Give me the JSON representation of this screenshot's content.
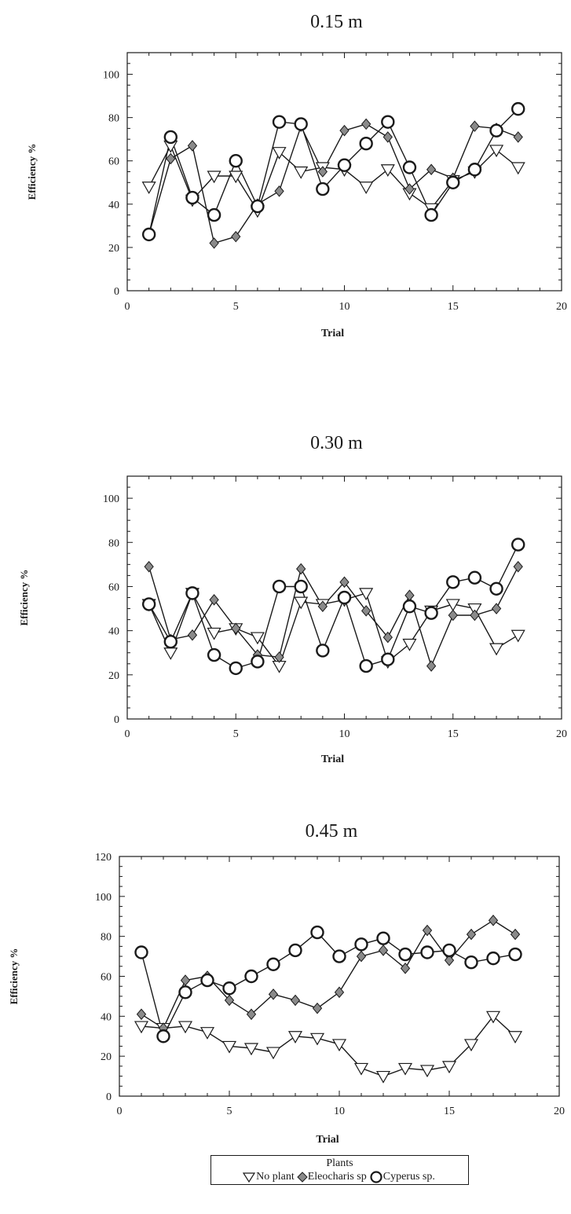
{
  "chart_data": [
    {
      "type": "line",
      "title": "0.15 m",
      "xlabel": "Trial",
      "ylabel": "Efficiency %",
      "xlim": [
        0,
        20
      ],
      "ylim": [
        0,
        110
      ],
      "xticks": [
        0,
        5,
        10,
        15,
        20
      ],
      "yticks": [
        0,
        20,
        40,
        60,
        80,
        100
      ],
      "x": [
        1,
        2,
        3,
        4,
        5,
        6,
        7,
        8,
        9,
        10,
        11,
        12,
        13,
        14,
        15,
        16,
        17,
        18
      ],
      "series": [
        {
          "name": "No plant",
          "marker": "triangle-down",
          "values": [
            48,
            67,
            42,
            53,
            53,
            37,
            64,
            55,
            57,
            56,
            48,
            56,
            45,
            38,
            51,
            55,
            65,
            57
          ]
        },
        {
          "name": "Eleocharis sp",
          "marker": "diamond",
          "values": [
            26,
            61,
            67,
            22,
            25,
            40,
            46,
            76,
            55,
            74,
            77,
            71,
            47,
            56,
            52,
            76,
            75,
            71
          ]
        },
        {
          "name": "Cyperus sp.",
          "marker": "circle",
          "values": [
            26,
            71,
            43,
            35,
            60,
            39,
            78,
            77,
            47,
            58,
            68,
            78,
            57,
            35,
            50,
            56,
            74,
            84
          ]
        }
      ]
    },
    {
      "type": "line",
      "title": "0.30 m",
      "xlabel": "Trial",
      "ylabel": "Efficiency %",
      "xlim": [
        0,
        20
      ],
      "ylim": [
        0,
        110
      ],
      "xticks": [
        0,
        5,
        10,
        15,
        20
      ],
      "yticks": [
        0,
        20,
        40,
        60,
        80,
        100
      ],
      "x": [
        1,
        2,
        3,
        4,
        5,
        6,
        7,
        8,
        9,
        10,
        11,
        12,
        13,
        14,
        15,
        16,
        17,
        18
      ],
      "series": [
        {
          "name": "No plant",
          "marker": "triangle-down",
          "values": [
            52,
            30,
            57,
            39,
            41,
            37,
            24,
            53,
            52,
            54,
            57,
            26,
            34,
            49,
            52,
            50,
            32,
            38
          ]
        },
        {
          "name": "Eleocharis sp",
          "marker": "diamond",
          "values": [
            69,
            36,
            38,
            54,
            41,
            29,
            28,
            68,
            51,
            62,
            49,
            37,
            56,
            24,
            47,
            47,
            50,
            69
          ]
        },
        {
          "name": "Cyperus sp.",
          "marker": "circle",
          "values": [
            52,
            35,
            57,
            29,
            23,
            26,
            60,
            60,
            31,
            55,
            24,
            27,
            51,
            48,
            62,
            64,
            59,
            79
          ]
        }
      ]
    },
    {
      "type": "line",
      "title": "0.45 m",
      "xlabel": "Trial",
      "ylabel": "Efficiency %",
      "xlim": [
        0,
        20
      ],
      "ylim": [
        0,
        120
      ],
      "xticks": [
        0,
        5,
        10,
        15,
        20
      ],
      "yticks": [
        0,
        20,
        40,
        60,
        80,
        100,
        120
      ],
      "x": [
        1,
        2,
        3,
        4,
        5,
        6,
        7,
        8,
        9,
        10,
        11,
        12,
        13,
        14,
        15,
        16,
        17,
        18
      ],
      "series": [
        {
          "name": "No plant",
          "marker": "triangle-down",
          "values": [
            35,
            34,
            35,
            32,
            25,
            24,
            22,
            30,
            29,
            26,
            14,
            10,
            14,
            13,
            15,
            26,
            40,
            30
          ]
        },
        {
          "name": "Eleocharis sp",
          "marker": "diamond",
          "values": [
            41,
            34,
            58,
            60,
            48,
            41,
            51,
            48,
            44,
            52,
            70,
            73,
            64,
            83,
            68,
            81,
            88,
            81
          ]
        },
        {
          "name": "Cyperus sp.",
          "marker": "circle",
          "values": [
            72,
            30,
            52,
            58,
            54,
            60,
            66,
            73,
            82,
            70,
            76,
            79,
            71,
            72,
            73,
            67,
            69,
            71
          ]
        }
      ]
    }
  ],
  "legend": {
    "title": "Plants",
    "items": [
      "No plant",
      "Eleocharis sp",
      "Cyperus sp."
    ]
  }
}
